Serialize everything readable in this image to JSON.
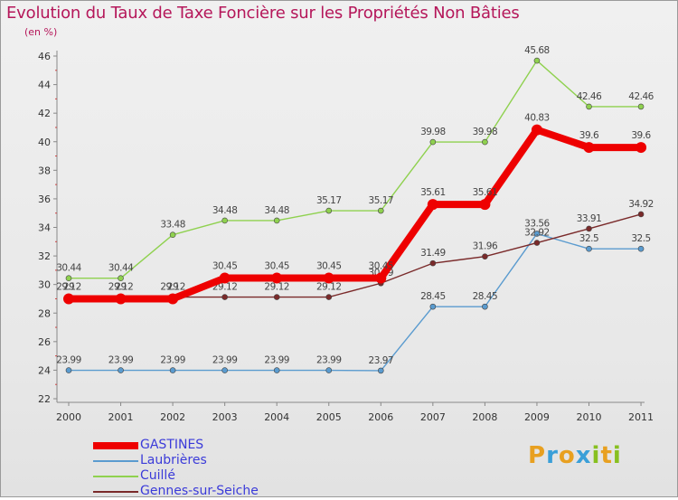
{
  "title": "Evolution du Taux de Taxe Foncière sur les Propriétés Non Bâties",
  "unit_label": "(en %)",
  "logo": {
    "text": "Proxiti",
    "letters": [
      "P",
      "r",
      "o",
      "x",
      "i",
      "t",
      "i"
    ],
    "colors": [
      "#e8a020",
      "#3a9fd8",
      "#e8a020",
      "#3a9fd8",
      "#88c020",
      "#e8a020",
      "#88c020"
    ]
  },
  "chart_data": {
    "type": "line",
    "x": [
      "2000",
      "2001",
      "2002",
      "2003",
      "2004",
      "2005",
      "2006",
      "2007",
      "2008",
      "2009",
      "2010",
      "2011"
    ],
    "ylim": [
      22,
      46
    ],
    "yticks": [
      22,
      24,
      26,
      28,
      30,
      32,
      34,
      36,
      38,
      40,
      42,
      44,
      46
    ],
    "grid": false,
    "legend_position": "bottom-left",
    "series": [
      {
        "name": "Laubrières",
        "color": "#5a9bcf",
        "values": [
          23.99,
          23.99,
          23.99,
          23.99,
          23.99,
          23.99,
          23.97,
          28.45,
          28.45,
          33.56,
          32.5,
          32.5
        ],
        "labels": [
          "23.99",
          "23.99",
          "23.99",
          "23.99",
          "23.99",
          "23.99",
          "23.97",
          "28.45",
          "28.45",
          "33.56",
          "32.5",
          "32.5"
        ]
      },
      {
        "name": "Cuillé",
        "color": "#8fd14f",
        "values": [
          30.44,
          30.44,
          33.48,
          34.48,
          34.48,
          35.17,
          35.17,
          39.98,
          39.98,
          45.68,
          42.46,
          42.46
        ],
        "labels": [
          "30.44",
          "30.44",
          "33.48",
          "34.48",
          "34.48",
          "35.17",
          "35.17",
          "39.98",
          "39.98",
          "45.68",
          "42.46",
          "42.46"
        ]
      },
      {
        "name": "Gennes-sur-Seiche",
        "color": "#7a2a2a",
        "values": [
          29.12,
          29.12,
          29.12,
          29.12,
          29.12,
          29.12,
          30.09,
          31.49,
          31.96,
          32.92,
          33.91,
          34.92
        ],
        "labels": [
          "29.12",
          "29.12",
          "29.12",
          "29.12",
          "29.12",
          "29.12",
          "30.09",
          "31.49",
          "31.96",
          "32.92",
          "33.91",
          "34.92"
        ]
      },
      {
        "name": "GASTINES",
        "color": "#ee0000",
        "values": [
          29,
          29,
          29,
          30.45,
          30.45,
          30.45,
          30.45,
          35.61,
          35.61,
          40.83,
          39.6,
          39.6
        ],
        "labels": [
          "29",
          "29",
          "29",
          "30.45",
          "30.45",
          "30.45",
          "30.45",
          "35.61",
          "35.61",
          "40.83",
          "39.6",
          "39.6"
        ]
      }
    ]
  },
  "legend": [
    {
      "name": "GASTINES",
      "color": "#ee0000"
    },
    {
      "name": "Laubrières",
      "color": "#5a9bcf"
    },
    {
      "name": "Cuillé",
      "color": "#8fd14f"
    },
    {
      "name": "Gennes-sur-Seiche",
      "color": "#7a2a2a"
    }
  ]
}
